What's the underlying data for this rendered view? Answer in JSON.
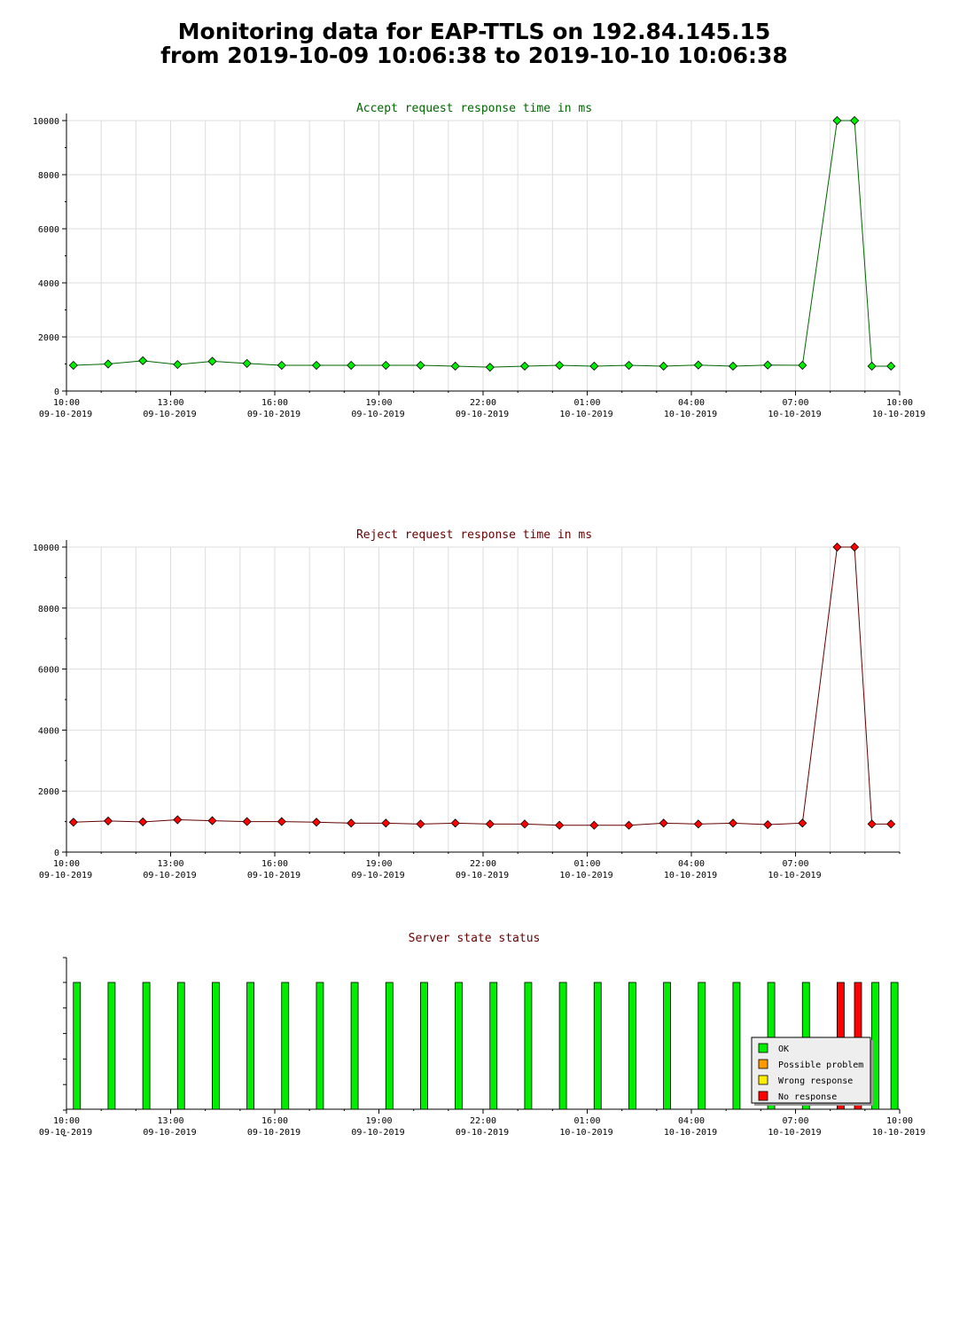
{
  "page": {
    "title_line1": "Monitoring data for EAP-TTLS on 192.84.145.15",
    "title_line2": "from 2019-10-09 10:06:38 to 2019-10-10 10:06:38"
  },
  "colors": {
    "accept_title": "#006600",
    "reject_title": "#660000",
    "status_title": "#660000",
    "accept_marker": "#00ee00",
    "reject_marker": "#ff0000",
    "grid": "#dddddd",
    "ok": "#00ee00",
    "possible_problem": "#ff9900",
    "wrong_response": "#ffee00",
    "no_response": "#ff0000"
  },
  "chart_data": [
    {
      "id": "accept",
      "type": "line",
      "title": "Accept request response time in ms",
      "ylim": [
        0,
        10000
      ],
      "yticks": [
        "0",
        "2000",
        "4000",
        "6000",
        "8000",
        "10000"
      ],
      "xlim_hours": [
        0,
        24
      ],
      "xticks": [
        {
          "time": "10:00",
          "date": "09-10-2019"
        },
        {
          "time": "13:00",
          "date": "09-10-2019"
        },
        {
          "time": "16:00",
          "date": "09-10-2019"
        },
        {
          "time": "19:00",
          "date": "09-10-2019"
        },
        {
          "time": "22:00",
          "date": "09-10-2019"
        },
        {
          "time": "01:00",
          "date": "10-10-2019"
        },
        {
          "time": "04:00",
          "date": "10-10-2019"
        },
        {
          "time": "07:00",
          "date": "10-10-2019"
        },
        {
          "time": "10:00",
          "date": "10-10-2019"
        }
      ],
      "grid": true,
      "x_hours": [
        0.2,
        1.2,
        2.2,
        3.2,
        4.2,
        5.2,
        6.2,
        7.2,
        8.2,
        9.2,
        10.2,
        11.2,
        12.2,
        13.2,
        14.2,
        15.2,
        16.2,
        17.2,
        18.2,
        19.2,
        20.2,
        21.2,
        22.2,
        22.7,
        23.2,
        23.75
      ],
      "values": [
        950,
        1000,
        1120,
        980,
        1100,
        1020,
        950,
        950,
        950,
        950,
        950,
        920,
        880,
        920,
        950,
        920,
        950,
        920,
        960,
        920,
        960,
        950,
        10000,
        10000,
        920,
        920
      ]
    },
    {
      "id": "reject",
      "type": "line",
      "title": "Reject request response time in ms",
      "ylim": [
        0,
        10000
      ],
      "yticks": [
        "0",
        "2000",
        "4000",
        "6000",
        "8000",
        "10000"
      ],
      "xlim_hours": [
        0,
        24
      ],
      "xticks": [
        {
          "time": "10:00",
          "date": "09-10-2019"
        },
        {
          "time": "13:00",
          "date": "09-10-2019"
        },
        {
          "time": "16:00",
          "date": "09-10-2019"
        },
        {
          "time": "19:00",
          "date": "09-10-2019"
        },
        {
          "time": "22:00",
          "date": "09-10-2019"
        },
        {
          "time": "01:00",
          "date": "10-10-2019"
        },
        {
          "time": "04:00",
          "date": "10-10-2019"
        },
        {
          "time": "07:00",
          "date": "10-10-2019"
        }
      ],
      "grid": true,
      "x_hours": [
        0.2,
        1.2,
        2.2,
        3.2,
        4.2,
        5.2,
        6.2,
        7.2,
        8.2,
        9.2,
        10.2,
        11.2,
        12.2,
        13.2,
        14.2,
        15.2,
        16.2,
        17.2,
        18.2,
        19.2,
        20.2,
        21.2,
        22.2,
        22.7,
        23.2,
        23.75
      ],
      "values": [
        980,
        1020,
        990,
        1060,
        1030,
        1000,
        1000,
        980,
        950,
        950,
        920,
        950,
        920,
        920,
        880,
        880,
        880,
        950,
        920,
        950,
        900,
        950,
        10000,
        10000,
        920,
        920
      ]
    },
    {
      "id": "status",
      "type": "bar",
      "title": "Server state status",
      "xlim_hours": [
        0,
        24
      ],
      "xticks": [
        {
          "time": "10:00",
          "date": "09-10-2019"
        },
        {
          "time": "13:00",
          "date": "09-10-2019"
        },
        {
          "time": "16:00",
          "date": "09-10-2019"
        },
        {
          "time": "19:00",
          "date": "09-10-2019"
        },
        {
          "time": "22:00",
          "date": "09-10-2019"
        },
        {
          "time": "01:00",
          "date": "10-10-2019"
        },
        {
          "time": "04:00",
          "date": "10-10-2019"
        },
        {
          "time": "07:00",
          "date": "10-10-2019"
        },
        {
          "time": "10:00",
          "date": "10-10-2019"
        }
      ],
      "grid": false,
      "x_hours": [
        0.3,
        1.3,
        2.3,
        3.3,
        4.3,
        5.3,
        6.3,
        7.3,
        8.3,
        9.3,
        10.3,
        11.3,
        12.3,
        13.3,
        14.3,
        15.3,
        16.3,
        17.3,
        18.3,
        19.3,
        20.3,
        21.3,
        22.3,
        22.8,
        23.3,
        23.85
      ],
      "states": [
        "ok",
        "ok",
        "ok",
        "ok",
        "ok",
        "ok",
        "ok",
        "ok",
        "ok",
        "ok",
        "ok",
        "ok",
        "ok",
        "ok",
        "ok",
        "ok",
        "ok",
        "ok",
        "ok",
        "ok",
        "ok",
        "ok",
        "no_response",
        "no_response",
        "ok",
        "ok"
      ],
      "legend": [
        {
          "key": "ok",
          "label": "OK"
        },
        {
          "key": "possible_problem",
          "label": "Possible problem"
        },
        {
          "key": "wrong_response",
          "label": "Wrong response"
        },
        {
          "key": "no_response",
          "label": "No response"
        }
      ],
      "legend_position": "bottom-right"
    }
  ]
}
